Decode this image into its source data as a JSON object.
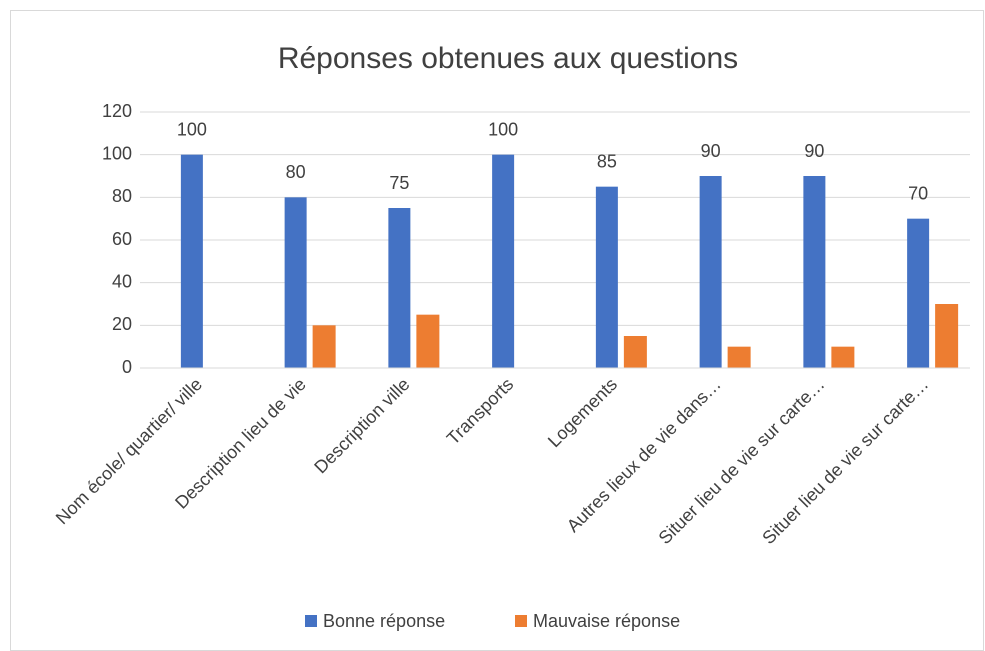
{
  "chart_data": {
    "type": "bar",
    "title": "Réponses obtenues aux questions",
    "categories": [
      "Nom école/ quartier/ ville",
      "Description lieu de vie",
      "Description ville",
      "Transports",
      "Logements",
      "Autres lieux de vie dans…",
      "Situer lieu de vie sur carte…",
      "Situer lieu de vie sur carte…"
    ],
    "series": [
      {
        "name": "Bonne réponse",
        "color": "#4472c4",
        "values": [
          100,
          80,
          75,
          100,
          85,
          90,
          90,
          70
        ],
        "data_labels": true
      },
      {
        "name": "Mauvaise réponse",
        "color": "#ed7d31",
        "values": [
          0,
          20,
          25,
          0,
          15,
          10,
          10,
          30
        ],
        "data_labels": false
      }
    ],
    "ylim": [
      0,
      120
    ],
    "yticks": [
      0,
      20,
      40,
      60,
      80,
      100,
      120
    ],
    "grid": true,
    "legend": "bottom"
  }
}
